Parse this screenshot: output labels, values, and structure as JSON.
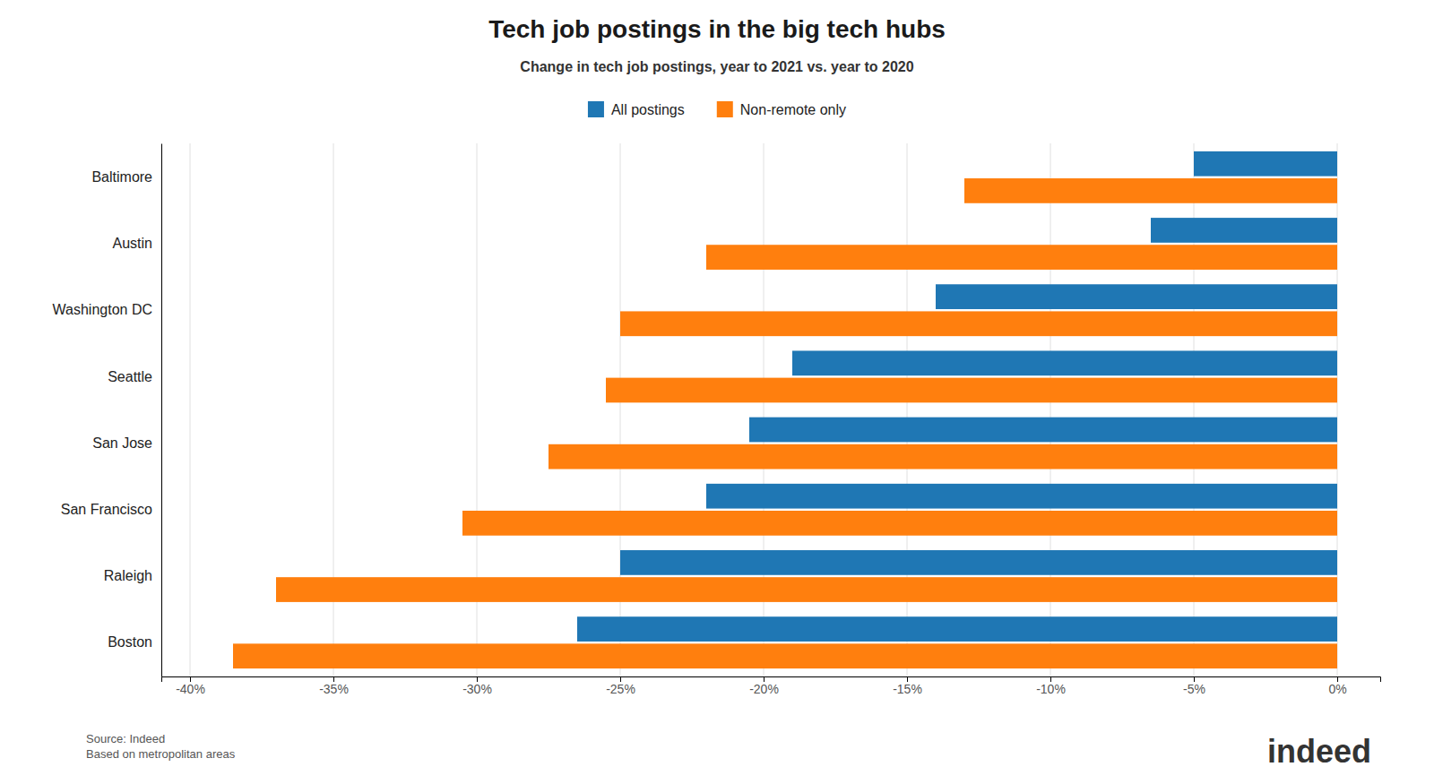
{
  "chart_data": {
    "type": "bar",
    "orientation": "horizontal",
    "title": "Tech job postings in the big tech hubs",
    "subtitle": "Change in tech job postings, year to 2021 vs. year to 2020",
    "categories": [
      "Boston",
      "Raleigh",
      "San Francisco",
      "San Jose",
      "Seattle",
      "Washington DC",
      "Austin",
      "Baltimore"
    ],
    "series": [
      {
        "name": "All postings",
        "values": [
          -26.5,
          -25.0,
          -22.0,
          -20.5,
          -19.0,
          -14.0,
          -6.5,
          -5.0
        ]
      },
      {
        "name": "Non-remote only",
        "values": [
          -38.5,
          -37.0,
          -30.5,
          -27.5,
          -25.5,
          -25.0,
          -22.0,
          -13.0
        ]
      }
    ],
    "xlim": [
      -41,
      1.5
    ],
    "xticks": [
      {
        "value": -40,
        "label": "-40%"
      },
      {
        "value": -35,
        "label": "-35%"
      },
      {
        "value": -30,
        "label": "-30%"
      },
      {
        "value": -25,
        "label": "-25%"
      },
      {
        "value": -20,
        "label": "-20%"
      },
      {
        "value": -15,
        "label": "-15%"
      },
      {
        "value": -10,
        "label": "-10%"
      },
      {
        "value": -5,
        "label": "-5%"
      },
      {
        "value": 0,
        "label": "0%"
      }
    ],
    "grid": true,
    "legend": "top",
    "annotations": [
      "Source: Indeed\nBased on metropolitan areas",
      "indeed"
    ]
  }
}
